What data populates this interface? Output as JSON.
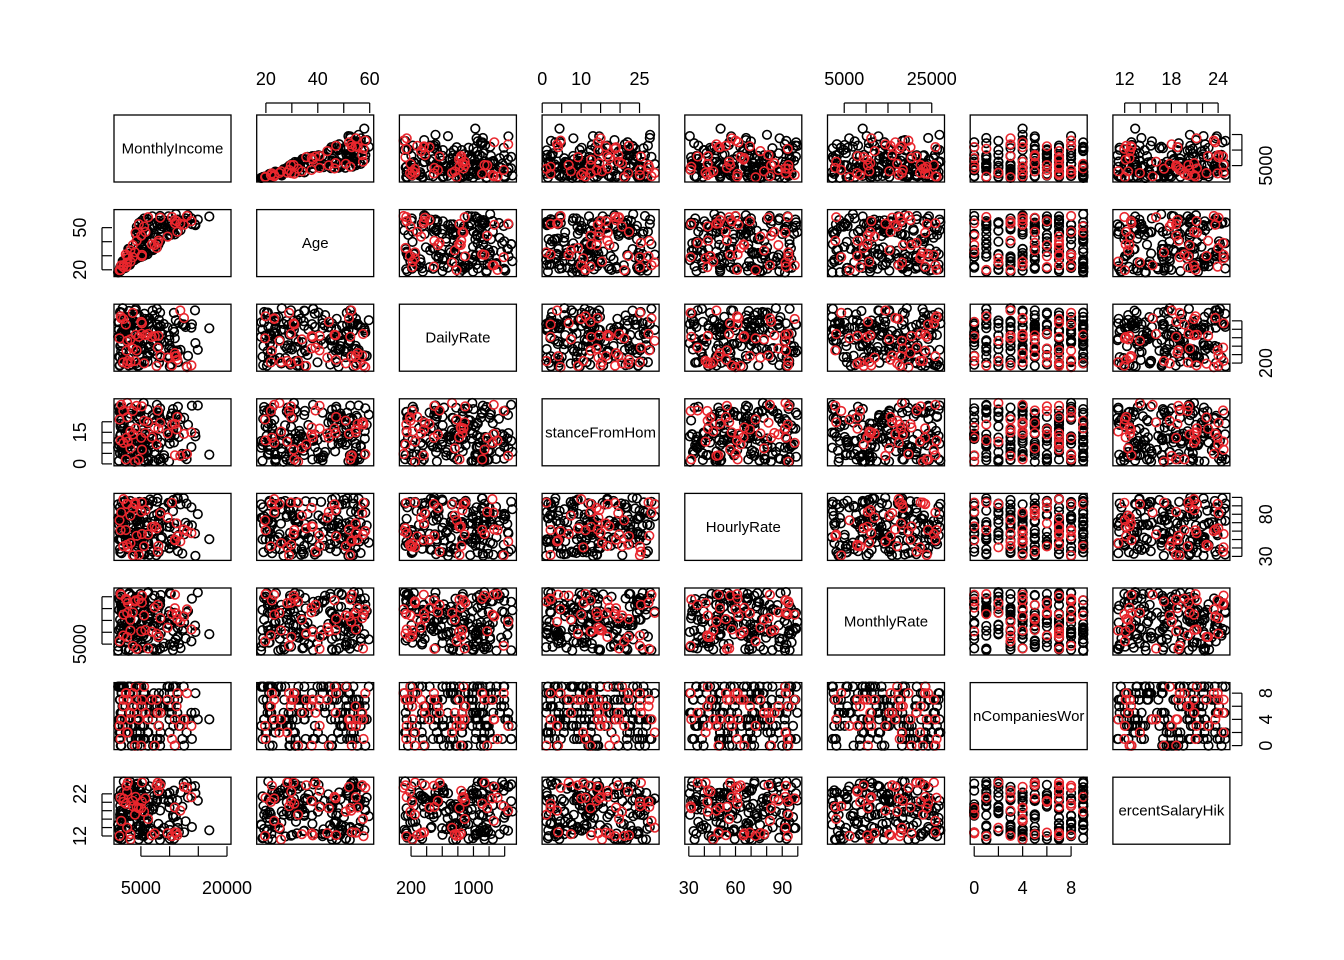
{
  "chart_data": {
    "type": "scatter",
    "kind": "scatterplot-matrix",
    "title": "",
    "colors": {
      "group_a": "#000000",
      "group_b": "#e8262d",
      "axis": "#000000"
    },
    "variables": [
      {
        "name": "MonthlyIncome",
        "range": [
          1009,
          19999
        ],
        "ticks": [
          5000,
          20000
        ],
        "tick_labels": [
          "5000",
          "20000"
        ],
        "display": "MonthlyIncome"
      },
      {
        "name": "Age",
        "range": [
          18,
          60
        ],
        "ticks": [
          20,
          30,
          40,
          50,
          60
        ],
        "tick_labels": [
          "20",
          "",
          "40",
          "",
          "60"
        ],
        "display": "Age"
      },
      {
        "name": "DailyRate",
        "range": [
          102,
          1499
        ],
        "ticks": [
          200,
          400,
          600,
          800,
          1000,
          1200,
          1400
        ],
        "tick_labels": [
          "200",
          "",
          "",
          "",
          "1000",
          "",
          ""
        ],
        "display": "DailyRate"
      },
      {
        "name": "DistanceFromHome",
        "range": [
          1,
          29
        ],
        "ticks": [
          0,
          5,
          10,
          15,
          20,
          25
        ],
        "tick_labels": [
          "0",
          "",
          "10",
          "",
          "",
          "25"
        ],
        "display": "stanceFromHom"
      },
      {
        "name": "HourlyRate",
        "range": [
          30,
          100
        ],
        "ticks": [
          30,
          40,
          50,
          60,
          70,
          80,
          90,
          100
        ],
        "tick_labels": [
          "30",
          "",
          "",
          "60",
          "",
          "",
          "90",
          ""
        ],
        "display": "HourlyRate"
      },
      {
        "name": "MonthlyRate",
        "range": [
          2094,
          26999
        ],
        "ticks": [
          5000,
          10000,
          15000,
          20000,
          25000
        ],
        "tick_labels": [
          "5000",
          "",
          "",
          "",
          "25000"
        ],
        "display": "MonthlyRate"
      },
      {
        "name": "NumCompaniesWorked",
        "range": [
          0,
          9
        ],
        "ticks": [
          0,
          2,
          4,
          6,
          8
        ],
        "tick_labels": [
          "0",
          "",
          "4",
          "",
          "8"
        ],
        "display": "nCompaniesWor"
      },
      {
        "name": "PercentSalaryHike",
        "range": [
          11,
          25
        ],
        "ticks": [
          12,
          14,
          16,
          18,
          20,
          22,
          24
        ],
        "tick_labels": [
          "12",
          "",
          "",
          "18",
          "",
          "",
          "24"
        ],
        "display": "ercentSalaryHik"
      }
    ],
    "axes": {
      "top": [
        {
          "var": 1,
          "ticks": [
            20,
            30,
            40,
            50,
            60
          ],
          "labels": [
            "20",
            "",
            "40",
            "",
            "60"
          ]
        },
        {
          "var": 3,
          "ticks": [
            0,
            5,
            10,
            15,
            20,
            25
          ],
          "labels": [
            "0",
            "",
            "10",
            "",
            "",
            "25"
          ]
        },
        {
          "var": 5,
          "ticks": [
            5000,
            10000,
            15000,
            20000,
            25000
          ],
          "labels": [
            "5000",
            "",
            "",
            "",
            "25000"
          ]
        },
        {
          "var": 7,
          "ticks": [
            12,
            14,
            16,
            18,
            20,
            22,
            24
          ],
          "labels": [
            "12",
            "",
            "",
            "18",
            "",
            "",
            "24"
          ]
        }
      ],
      "bottom": [
        {
          "var": 0,
          "ticks": [
            5000,
            10000,
            15000,
            20000
          ],
          "labels": [
            "5000",
            "",
            "",
            "20000"
          ]
        },
        {
          "var": 2,
          "ticks": [
            200,
            400,
            600,
            800,
            1000,
            1200,
            1400
          ],
          "labels": [
            "200",
            "",
            "",
            "",
            "1000",
            "",
            ""
          ]
        },
        {
          "var": 4,
          "ticks": [
            30,
            40,
            50,
            60,
            70,
            80,
            90,
            100
          ],
          "labels": [
            "30",
            "",
            "",
            "60",
            "",
            "",
            "90",
            ""
          ]
        },
        {
          "var": 6,
          "ticks": [
            0,
            2,
            4,
            6,
            8
          ],
          "labels": [
            "0",
            "",
            "4",
            "",
            "8"
          ]
        }
      ],
      "left": [
        {
          "var": 1,
          "ticks": [
            20,
            30,
            40,
            50
          ],
          "labels": [
            "20",
            "",
            "",
            "50"
          ]
        },
        {
          "var": 3,
          "ticks": [
            0,
            5,
            10,
            15,
            20
          ],
          "labels": [
            "0",
            "",
            "",
            "15",
            ""
          ]
        },
        {
          "var": 5,
          "ticks": [
            5000,
            10000,
            15000,
            20000,
            25000
          ],
          "labels": [
            "5000",
            "",
            "",
            "",
            ""
          ]
        },
        {
          "var": 7,
          "ticks": [
            12,
            14,
            16,
            18,
            20,
            22
          ],
          "labels": [
            "12",
            "",
            "",
            "",
            "",
            "22"
          ]
        }
      ],
      "right": [
        {
          "var": 0,
          "ticks": [
            5000,
            10000,
            15000
          ],
          "labels": [
            "5000",
            "",
            ""
          ]
        },
        {
          "var": 2,
          "ticks": [
            200,
            400,
            600,
            800,
            1000,
            1200
          ],
          "labels": [
            "200",
            "",
            "",
            "",
            "",
            ""
          ]
        },
        {
          "var": 4,
          "ticks": [
            30,
            40,
            50,
            60,
            70,
            80,
            90,
            100
          ],
          "labels": [
            "30",
            "",
            "",
            "",
            "",
            "80",
            "",
            ""
          ]
        },
        {
          "var": 6,
          "ticks": [
            0,
            2,
            4,
            6,
            8
          ],
          "labels": [
            "0",
            "",
            "4",
            "",
            "8"
          ]
        }
      ]
    },
    "series": [
      {
        "n_points": 160
      },
      {
        "n_points": 40
      }
    ],
    "grid": false,
    "legend": "none"
  }
}
